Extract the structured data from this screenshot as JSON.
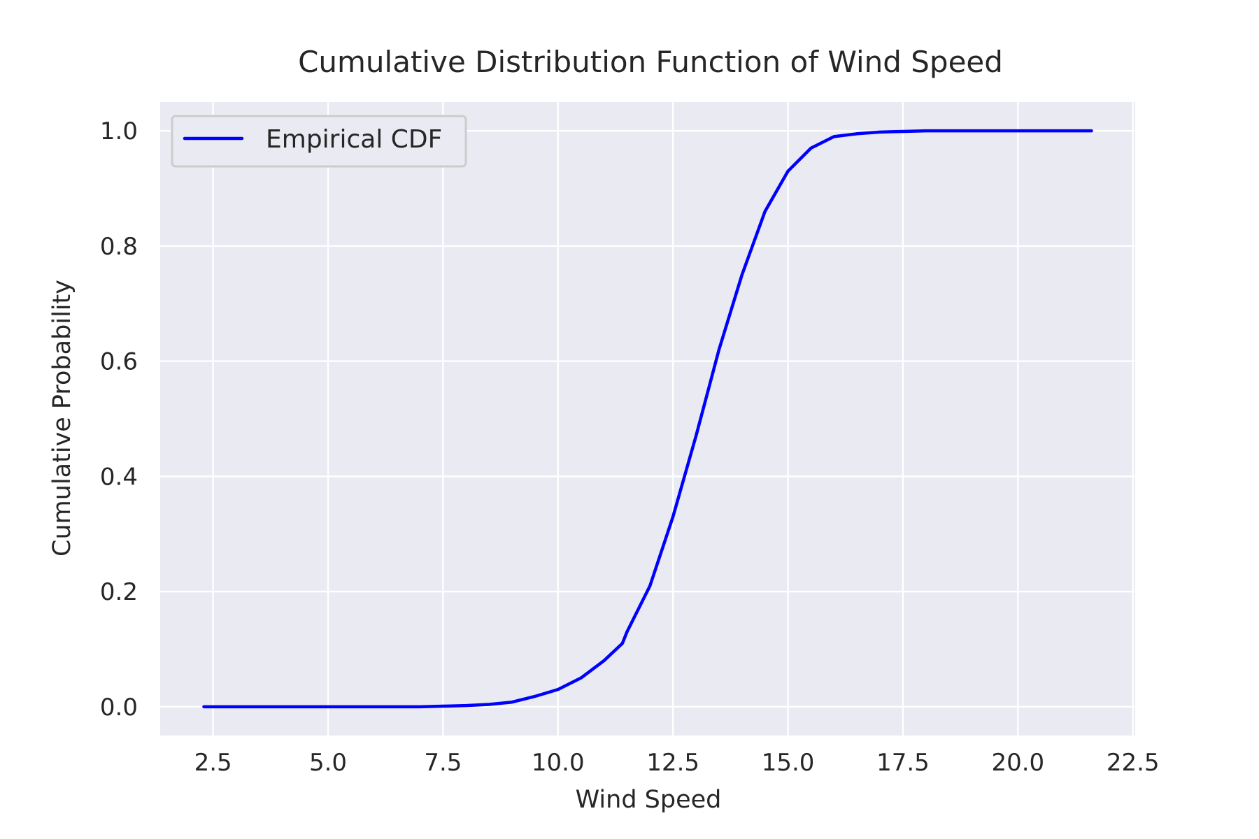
{
  "chart_data": {
    "type": "line",
    "title": "Cumulative Distribution Function of Wind Speed",
    "xlabel": "Wind Speed",
    "ylabel": "Cumulative Probability",
    "xlim": [
      1.35,
      22.55
    ],
    "ylim": [
      -0.05,
      1.05
    ],
    "xticks": [
      2.5,
      5.0,
      7.5,
      10.0,
      12.5,
      15.0,
      17.5,
      20.0,
      22.5
    ],
    "xtick_labels": [
      "2.5",
      "5.0",
      "7.5",
      "10.0",
      "12.5",
      "15.0",
      "17.5",
      "20.0",
      "22.5"
    ],
    "yticks": [
      0.0,
      0.2,
      0.4,
      0.6,
      0.8,
      1.0
    ],
    "ytick_labels": [
      "0.0",
      "0.2",
      "0.4",
      "0.6",
      "0.8",
      "1.0"
    ],
    "grid": true,
    "legend_position": "upper-left",
    "colors": {
      "plot_background": "#eaeaf2",
      "grid": "#ffffff",
      "line": "#0000ff",
      "text": "#262626"
    },
    "series": [
      {
        "name": "Empirical CDF",
        "x": [
          2.3,
          3.0,
          4.0,
          5.0,
          6.0,
          7.0,
          7.5,
          8.0,
          8.5,
          9.0,
          9.5,
          10.0,
          10.5,
          11.0,
          11.4,
          11.5,
          12.0,
          12.5,
          13.0,
          13.5,
          14.0,
          14.5,
          15.0,
          15.5,
          16.0,
          16.5,
          17.0,
          17.5,
          18.0,
          19.0,
          20.0,
          21.0,
          21.6
        ],
        "y": [
          0.0,
          0.0,
          0.0,
          0.0,
          0.0,
          0.0,
          0.001,
          0.002,
          0.004,
          0.008,
          0.018,
          0.03,
          0.05,
          0.08,
          0.11,
          0.13,
          0.21,
          0.33,
          0.47,
          0.62,
          0.75,
          0.86,
          0.93,
          0.97,
          0.99,
          0.995,
          0.998,
          0.999,
          1.0,
          1.0,
          1.0,
          1.0,
          1.0
        ]
      }
    ]
  }
}
